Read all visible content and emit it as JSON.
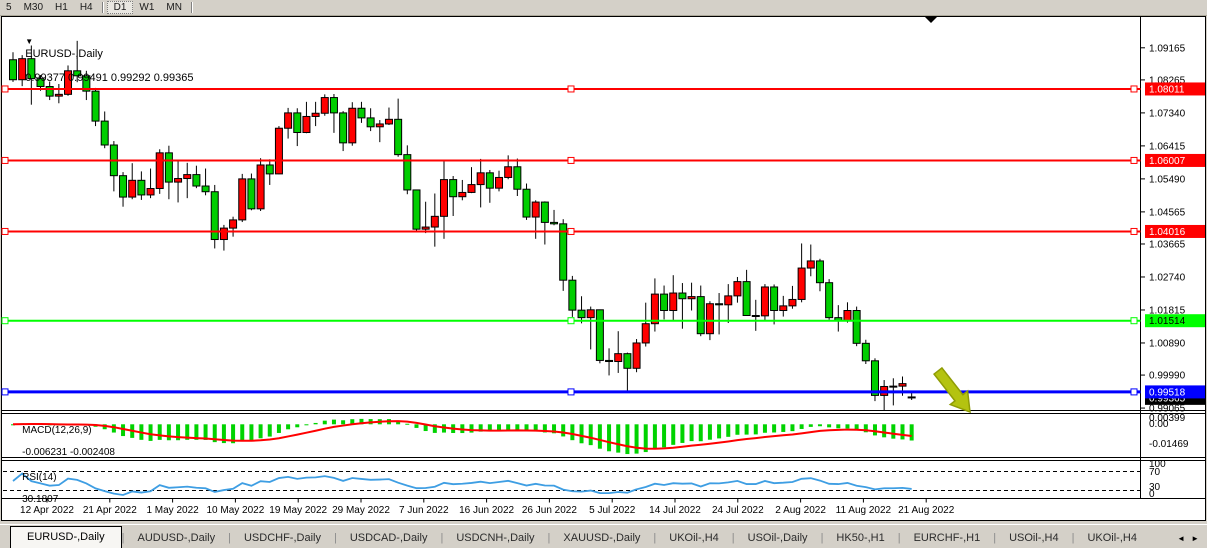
{
  "toolbar": {
    "timeframes": [
      {
        "label": "5",
        "active": false
      },
      {
        "label": "M30",
        "active": false
      },
      {
        "label": "H1",
        "active": false
      },
      {
        "label": "H4",
        "active": false
      },
      {
        "label": "D1",
        "active": true
      },
      {
        "label": "W1",
        "active": false
      },
      {
        "label": "MN",
        "active": false
      }
    ]
  },
  "chart": {
    "symbol_title": "EURUSD-,Daily",
    "ohlc_text": "0.99377 0.99491 0.99292 0.99365",
    "dropdown_icon": "symbol-menu-triangle"
  },
  "price_axis": {
    "ticks": [
      "1.09165",
      "1.08265",
      "1.07340",
      "1.06415",
      "1.05490",
      "1.04565",
      "1.03665",
      "1.02740",
      "1.01815",
      "1.00890",
      "0.99990",
      "0.99065"
    ],
    "current_price": "0.99365",
    "current_price_bg": "#000000"
  },
  "hlines": [
    {
      "price": "1.08011",
      "color": "#FF0000",
      "width": 2,
      "badge_text_color": "#ffffff"
    },
    {
      "price": "1.06007",
      "color": "#FF0000",
      "width": 2,
      "badge_text_color": "#ffffff"
    },
    {
      "price": "1.04016",
      "color": "#FF0000",
      "width": 2,
      "badge_text_color": "#ffffff"
    },
    {
      "price": "1.01514",
      "color": "#00FF00",
      "width": 2,
      "badge_text_color": "#000000"
    },
    {
      "price": "0.99518",
      "color": "#0000FF",
      "width": 3,
      "badge_text_color": "#ffffff"
    }
  ],
  "indicators": {
    "macd": {
      "label": "MACD(12,26,9)",
      "values_text": "-0.006231 -0.002408",
      "axis_labels": [
        "0.00399",
        "0.00",
        "-0.01469"
      ],
      "histogram_color": "#00D300",
      "signal_color": "#FF0000"
    },
    "rsi": {
      "label": "RSI(14)",
      "value_text": "30.1807",
      "axis_labels": [
        "100",
        "70",
        "30",
        "0"
      ],
      "levels": [
        70,
        30
      ],
      "line_color": "#3E9EE3"
    }
  },
  "time_axis": {
    "labels": [
      "12 Apr 2022",
      "21 Apr 2022",
      "1 May 2022",
      "10 May 2022",
      "19 May 2022",
      "29 May 2022",
      "7 Jun 2022",
      "16 Jun 2022",
      "26 Jun 2022",
      "5 Jul 2022",
      "14 Jul 2022",
      "24 Jul 2022",
      "2 Aug 2022",
      "11 Aug 2022",
      "21 Aug 2022"
    ]
  },
  "tabs": [
    {
      "label": "EURUSD-,Daily",
      "active": true
    },
    {
      "label": "AUDUSD-,Daily",
      "active": false
    },
    {
      "label": "USDCHF-,Daily",
      "active": false
    },
    {
      "label": "USDCAD-,Daily",
      "active": false
    },
    {
      "label": "USDCNH-,Daily",
      "active": false
    },
    {
      "label": "XAUUSD-,Daily",
      "active": false
    },
    {
      "label": "UKOil-,H4",
      "active": false
    },
    {
      "label": "USOil-,Daily",
      "active": false
    },
    {
      "label": "HK50-,H1",
      "active": false
    },
    {
      "label": "EURCHF-,H1",
      "active": false
    },
    {
      "label": "USOil-,H4",
      "active": false
    },
    {
      "label": "UKOil-,H4",
      "active": false
    }
  ],
  "tab_scroll": {
    "left_arrow": "◄",
    "right_arrow": "►"
  },
  "annotations": {
    "arrow": {
      "type": "down-right-arrow",
      "color": "#b4c310",
      "outline": "#8f9c05"
    },
    "top_marker": {
      "type": "down-triangle",
      "color": "#000000"
    }
  },
  "colors": {
    "bull_candle": "#FF0000",
    "bear_candle": "#00CE00",
    "candle_outline": "#000000",
    "chart_bg": "#FFFFFF",
    "frame_bg": "#d4d0c8"
  },
  "chart_data": {
    "type": "candlestick",
    "symbol": "EURUSD",
    "timeframe": "Daily",
    "price_range_top": 1.0972,
    "price_range_bottom": 0.9915,
    "note": "red body = up day, lime body = down day",
    "candles": [
      [
        "12 Apr 2022",
        1.0883,
        1.0904,
        1.0821,
        1.0827
      ],
      [
        "13 Apr 2022",
        1.0827,
        1.0896,
        1.0809,
        1.0886
      ],
      [
        "14 Apr 2022",
        1.0886,
        1.0923,
        1.0757,
        1.083
      ],
      [
        "15 Apr 2022",
        1.083,
        1.084,
        1.0796,
        1.0808
      ],
      [
        "18 Apr 2022",
        1.0808,
        1.0822,
        1.077,
        1.0781
      ],
      [
        "19 Apr 2022",
        1.0781,
        1.0815,
        1.0761,
        1.0786
      ],
      [
        "20 Apr 2022",
        1.0786,
        1.0867,
        1.0782,
        1.0852
      ],
      [
        "21 Apr 2022",
        1.0852,
        1.0936,
        1.082,
        1.0838
      ],
      [
        "22 Apr 2022",
        1.0838,
        1.0852,
        1.077,
        1.0795
      ],
      [
        "25 Apr 2022",
        1.0795,
        1.0804,
        1.0697,
        1.0711
      ],
      [
        "26 Apr 2022",
        1.0711,
        1.0738,
        1.0635,
        1.0644
      ],
      [
        "27 Apr 2022",
        1.0644,
        1.0655,
        1.0514,
        1.0558
      ],
      [
        "28 Apr 2022",
        1.0558,
        1.0568,
        1.0471,
        1.0498
      ],
      [
        "29 Apr 2022",
        1.0498,
        1.0593,
        1.0492,
        1.0545
      ],
      [
        "2 May 2022",
        1.0545,
        1.057,
        1.049,
        1.0504
      ],
      [
        "3 May 2022",
        1.0504,
        1.0578,
        1.0495,
        1.0522
      ],
      [
        "4 May 2022",
        1.0522,
        1.0632,
        1.0507,
        1.0622
      ],
      [
        "5 May 2022",
        1.0622,
        1.0642,
        1.0492,
        1.054
      ],
      [
        "6 May 2022",
        1.054,
        1.0599,
        1.0483,
        1.055
      ],
      [
        "9 May 2022",
        1.055,
        1.0594,
        1.0495,
        1.0561
      ],
      [
        "10 May 2022",
        1.0561,
        1.0586,
        1.0523,
        1.0529
      ],
      [
        "11 May 2022",
        1.0529,
        1.0578,
        1.0503,
        1.0513
      ],
      [
        "12 May 2022",
        1.0513,
        1.0532,
        1.0354,
        1.0379
      ],
      [
        "13 May 2022",
        1.0379,
        1.042,
        1.0348,
        1.0411
      ],
      [
        "16 May 2022",
        1.0411,
        1.0443,
        1.0387,
        1.0434
      ],
      [
        "17 May 2022",
        1.0434,
        1.0563,
        1.0428,
        1.0549
      ],
      [
        "18 May 2022",
        1.0549,
        1.0564,
        1.0461,
        1.0465
      ],
      [
        "19 May 2022",
        1.0465,
        1.0607,
        1.0459,
        1.0588
      ],
      [
        "20 May 2022",
        1.0588,
        1.0604,
        1.0532,
        1.0563
      ],
      [
        "23 May 2022",
        1.0563,
        1.0697,
        1.0562,
        1.0691
      ],
      [
        "24 May 2022",
        1.0691,
        1.0748,
        1.0662,
        1.0734
      ],
      [
        "25 May 2022",
        1.0734,
        1.0747,
        1.0641,
        1.0679
      ],
      [
        "26 May 2022",
        1.0679,
        1.0765,
        1.0677,
        1.0724
      ],
      [
        "27 May 2022",
        1.0724,
        1.0765,
        1.0697,
        1.0733
      ],
      [
        "30 May 2022",
        1.0733,
        1.0786,
        1.0726,
        1.0777
      ],
      [
        "31 May 2022",
        1.0777,
        1.0787,
        1.0678,
        1.0734
      ],
      [
        "1 Jun 2022",
        1.0734,
        1.0739,
        1.0627,
        1.065
      ],
      [
        "2 Jun 2022",
        1.065,
        1.0764,
        1.0642,
        1.0747
      ],
      [
        "3 Jun 2022",
        1.0747,
        1.0765,
        1.0706,
        1.072
      ],
      [
        "6 Jun 2022",
        1.072,
        1.0747,
        1.0683,
        1.0695
      ],
      [
        "7 Jun 2022",
        1.0695,
        1.0714,
        1.0652,
        1.0703
      ],
      [
        "8 Jun 2022",
        1.0703,
        1.0749,
        1.07,
        1.0716
      ],
      [
        "9 Jun 2022",
        1.0716,
        1.0774,
        1.0611,
        1.0617
      ],
      [
        "10 Jun 2022",
        1.0617,
        1.0643,
        1.0506,
        1.0518
      ],
      [
        "13 Jun 2022",
        1.0518,
        1.0519,
        1.0399,
        1.0408
      ],
      [
        "14 Jun 2022",
        1.0408,
        1.0485,
        1.0397,
        1.0414
      ],
      [
        "15 Jun 2022",
        1.0414,
        1.0508,
        1.0359,
        1.0444
      ],
      [
        "16 Jun 2022",
        1.0444,
        1.0601,
        1.0381,
        1.0547
      ],
      [
        "17 Jun 2022",
        1.0547,
        1.0557,
        1.0445,
        1.0499
      ],
      [
        "20 Jun 2022",
        1.0499,
        1.0546,
        1.0489,
        1.0511
      ],
      [
        "21 Jun 2022",
        1.0511,
        1.0582,
        1.0509,
        1.0533
      ],
      [
        "22 Jun 2022",
        1.0533,
        1.0605,
        1.0469,
        1.0566
      ],
      [
        "23 Jun 2022",
        1.0566,
        1.0574,
        1.0482,
        1.0523
      ],
      [
        "24 Jun 2022",
        1.0523,
        1.0572,
        1.0514,
        1.0553
      ],
      [
        "27 Jun 2022",
        1.0553,
        1.0615,
        1.0548,
        1.0583
      ],
      [
        "28 Jun 2022",
        1.0583,
        1.0606,
        1.0501,
        1.052
      ],
      [
        "29 Jun 2022",
        1.052,
        1.0536,
        1.0434,
        1.0442
      ],
      [
        "30 Jun 2022",
        1.0442,
        1.0489,
        1.0381,
        1.0484
      ],
      [
        "1 Jul 2022",
        1.0484,
        1.0486,
        1.0365,
        1.0427
      ],
      [
        "4 Jul 2022",
        1.0427,
        1.0462,
        1.0419,
        1.0423
      ],
      [
        "5 Jul 2022",
        1.0423,
        1.0436,
        1.0235,
        1.0265
      ],
      [
        "6 Jul 2022",
        1.0265,
        1.0277,
        1.0162,
        1.0181
      ],
      [
        "7 Jul 2022",
        1.0181,
        1.022,
        1.0144,
        1.016
      ],
      [
        "8 Jul 2022",
        1.016,
        1.0191,
        1.0071,
        1.0182
      ],
      [
        "11 Jul 2022",
        1.0182,
        1.0183,
        1.0032,
        1.004
      ],
      [
        "12 Jul 2022",
        1.004,
        1.0074,
        0.9998,
        1.0037
      ],
      [
        "13 Jul 2022",
        1.0037,
        1.0122,
        1.0005,
        1.0059
      ],
      [
        "14 Jul 2022",
        1.0059,
        1.0062,
        0.9952,
        1.0018
      ],
      [
        "15 Jul 2022",
        1.0018,
        1.01,
        1.0007,
        1.0089
      ],
      [
        "18 Jul 2022",
        1.0089,
        1.0202,
        1.0079,
        1.0143
      ],
      [
        "19 Jul 2022",
        1.0143,
        1.027,
        1.0121,
        1.0226
      ],
      [
        "20 Jul 2022",
        1.0226,
        1.025,
        1.0155,
        1.018
      ],
      [
        "21 Jul 2022",
        1.018,
        1.0279,
        1.0152,
        1.0229
      ],
      [
        "22 Jul 2022",
        1.0229,
        1.0257,
        1.0129,
        1.0213
      ],
      [
        "25 Jul 2022",
        1.0213,
        1.0258,
        1.018,
        1.0219
      ],
      [
        "26 Jul 2022",
        1.0219,
        1.025,
        1.0108,
        1.0115
      ],
      [
        "27 Jul 2022",
        1.0115,
        1.0206,
        1.0097,
        1.0199
      ],
      [
        "28 Jul 2022",
        1.0199,
        1.0229,
        1.0113,
        1.0196
      ],
      [
        "29 Jul 2022",
        1.0196,
        1.0254,
        1.0145,
        1.0221
      ],
      [
        "1 Aug 2022",
        1.0221,
        1.0274,
        1.0202,
        1.0261
      ],
      [
        "2 Aug 2022",
        1.0261,
        1.0294,
        1.0165,
        1.0166
      ],
      [
        "3 Aug 2022",
        1.0166,
        1.021,
        1.0123,
        1.0165
      ],
      [
        "4 Aug 2022",
        1.0165,
        1.0254,
        1.0152,
        1.0246
      ],
      [
        "5 Aug 2022",
        1.0246,
        1.0253,
        1.0141,
        1.018
      ],
      [
        "8 Aug 2022",
        1.018,
        1.0221,
        1.0163,
        1.0193
      ],
      [
        "9 Aug 2022",
        1.0193,
        1.0249,
        1.0185,
        1.0211
      ],
      [
        "10 Aug 2022",
        1.0211,
        1.0368,
        1.0203,
        1.0299
      ],
      [
        "11 Aug 2022",
        1.0299,
        1.0365,
        1.0276,
        1.0319
      ],
      [
        "12 Aug 2022",
        1.0319,
        1.0325,
        1.0234,
        1.0258
      ],
      [
        "15 Aug 2022",
        1.0258,
        1.0268,
        1.0154,
        1.016
      ],
      [
        "16 Aug 2022",
        1.016,
        1.0195,
        1.0121,
        1.0152
      ],
      [
        "17 Aug 2022",
        1.0152,
        1.0203,
        1.0146,
        1.018
      ],
      [
        "18 Aug 2022",
        1.018,
        1.0191,
        1.008,
        1.0088
      ],
      [
        "19 Aug 2022",
        1.0088,
        1.0098,
        1.003,
        1.0039
      ],
      [
        "22 Aug 2022",
        1.0039,
        1.0046,
        0.9926,
        0.9942
      ],
      [
        "23 Aug 2022",
        0.9942,
        0.9985,
        0.9901,
        0.9967
      ],
      [
        "24 Aug 2022",
        0.9967,
        0.999,
        0.9914,
        0.9968
      ],
      [
        "25 Aug 2022",
        0.9968,
        0.9995,
        0.9941,
        0.9975
      ],
      [
        "26 Aug 2022",
        0.99377,
        0.99491,
        0.99292,
        0.99365
      ]
    ],
    "overlays": {
      "horizontal_lines": [
        1.08011,
        1.06007,
        1.04016,
        1.01514,
        0.99518
      ],
      "macd": {
        "params": [
          12,
          26,
          9
        ],
        "last_main": -0.006231,
        "last_signal": -0.002408,
        "axis_max": 0.00399,
        "axis_min": -0.01469
      },
      "rsi": {
        "period": 14,
        "last_value": 30.1807,
        "levels": [
          70,
          30
        ]
      }
    }
  }
}
